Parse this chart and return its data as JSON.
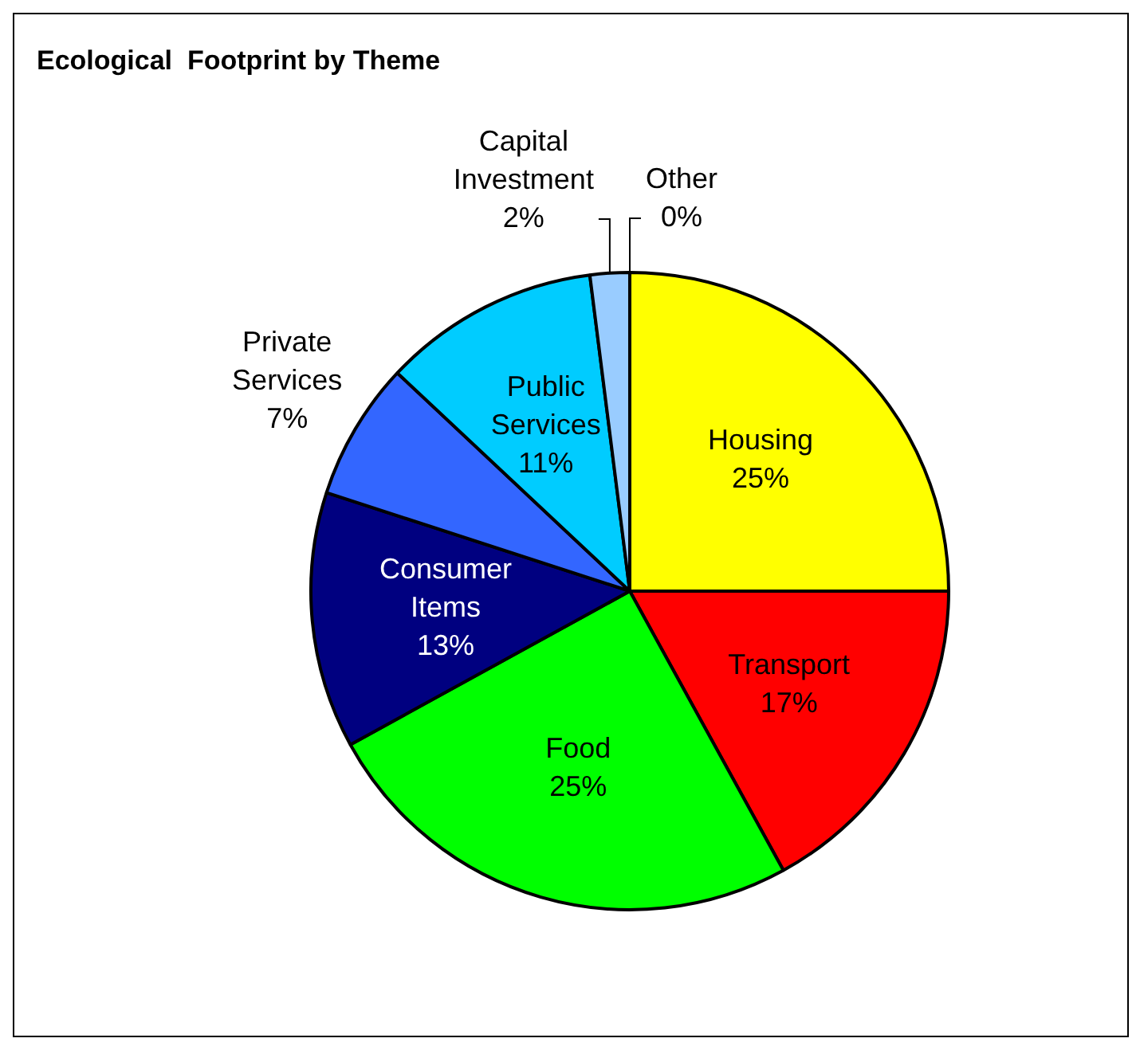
{
  "chart_data": {
    "type": "pie",
    "title": "Ecological  Footprint by Theme",
    "categories": [
      "Housing",
      "Transport",
      "Food",
      "Consumer Items",
      "Private Services",
      "Public Services",
      "Capital Investment",
      "Other"
    ],
    "values": [
      25,
      17,
      25,
      13,
      7,
      11,
      2,
      0
    ],
    "value_labels": [
      "25%",
      "17%",
      "25%",
      "13%",
      "7%",
      "11%",
      "2%",
      "0%"
    ],
    "colors": [
      "#ffff00",
      "#ff0000",
      "#00ff00",
      "#000080",
      "#3366ff",
      "#00ccff",
      "#99ccff",
      "#c0c0c0"
    ],
    "legend": false
  }
}
